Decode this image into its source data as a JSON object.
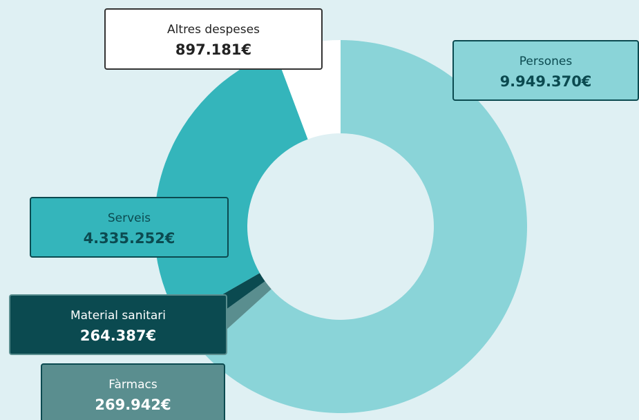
{
  "chart_data": {
    "type": "donut",
    "categories": [
      "Persones",
      "Fàrmacs",
      "Material sanitari",
      "Serveis",
      "Altres despeses"
    ],
    "values": [
      9949370,
      269942,
      264387,
      4335252,
      897181
    ],
    "value_labels": [
      "9.949.370€",
      "269.942€",
      "264.387€",
      "4.335.252€",
      "897.181€"
    ],
    "colors": [
      "#8ad4d8",
      "#5a8e8f",
      "#0b4a50",
      "#34b5bb",
      "#ffffff"
    ]
  }
}
